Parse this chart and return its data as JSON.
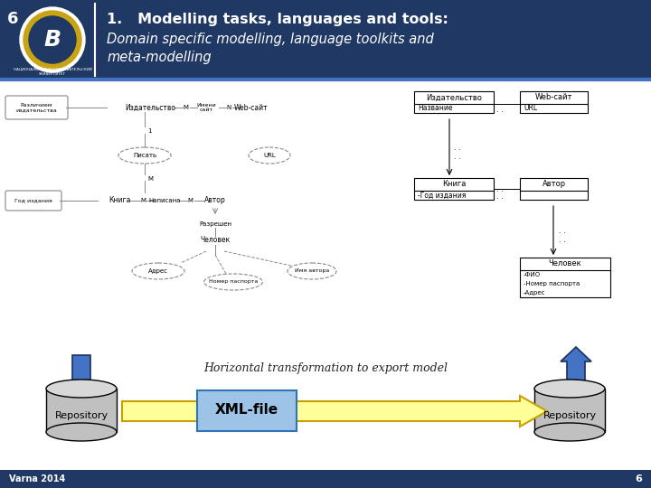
{
  "bg_color": "#f2f2f2",
  "header_bg": "#1f3864",
  "header_text_color": "#ffffff",
  "slide_number": "6",
  "title_line1": "1.   Modelling tasks, languages and tools:",
  "title_line2": "Domain specific modelling, language toolkits and",
  "title_line3": "meta-modelling",
  "footer_bg": "#1f3864",
  "footer_text": "Varna 2014",
  "footer_number": "6",
  "body_bg": "#ffffff",
  "transform_text": "Horizontal transformation to export model",
  "repo_label": "Repository",
  "xml_label": "XML-file"
}
